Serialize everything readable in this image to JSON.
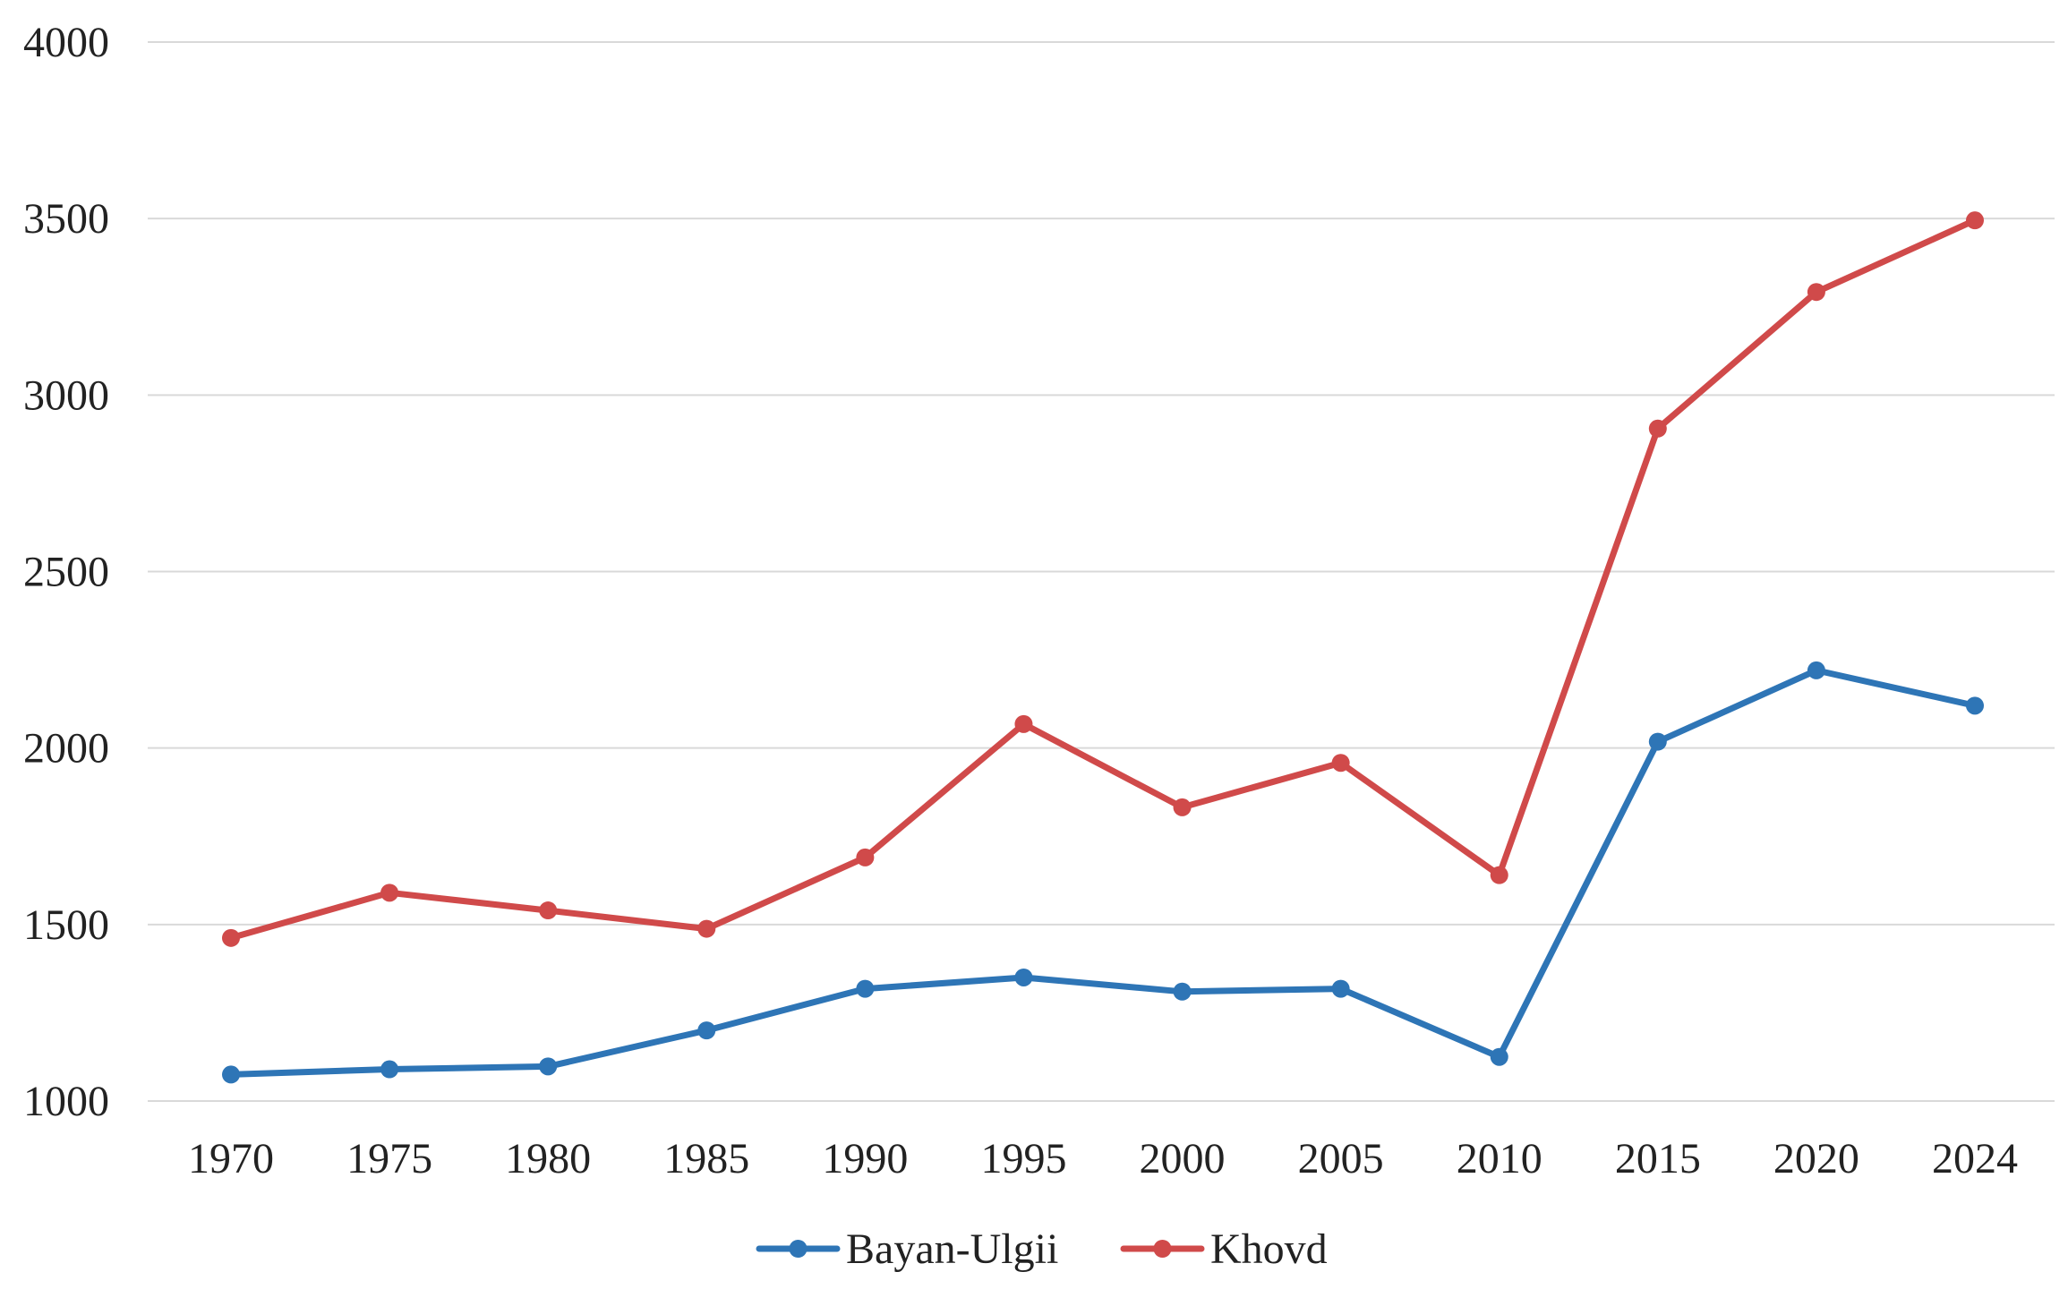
{
  "chart_data": {
    "type": "line",
    "categories": [
      "1970",
      "1975",
      "1980",
      "1985",
      "1990",
      "1995",
      "2000",
      "2005",
      "2010",
      "2015",
      "2020",
      "2024"
    ],
    "series": [
      {
        "name": "Bayan-Ulgii",
        "color": "#2e75b6",
        "values": [
          1075,
          1090,
          1098,
          1200,
          1318,
          1350,
          1310,
          1318,
          1125,
          2018,
          2220,
          2120
        ]
      },
      {
        "name": "Khovd",
        "color": "#d04a4a",
        "values": [
          1462,
          1590,
          1540,
          1488,
          1690,
          2068,
          1832,
          1958,
          1640,
          2905,
          3292,
          3495
        ]
      }
    ],
    "ylim": [
      1000,
      4000
    ],
    "yticks": [
      "1000",
      "1500",
      "2000",
      "2500",
      "3000",
      "3500",
      "4000"
    ],
    "grid": true,
    "legend_position": "bottom-center",
    "title": "",
    "xlabel": "",
    "ylabel": ""
  }
}
